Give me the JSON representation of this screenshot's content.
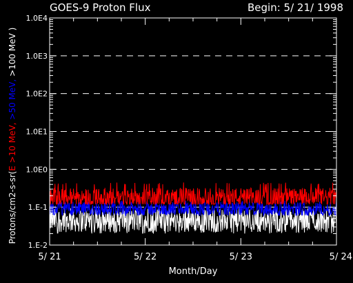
{
  "header": {
    "title": "GOES-9 Proton Flux",
    "begin": "Begin: 5/ 21/ 1998"
  },
  "chart_data": {
    "type": "line",
    "xlabel": "Month/Day",
    "x_tick_labels": [
      "5/ 21",
      "5/ 22",
      "5/ 23",
      "5/ 24"
    ],
    "x_range_days": [
      0,
      3
    ],
    "ylabel_parts": [
      {
        "text": "Protons/cm2-s-sr(",
        "color": "#ffffff"
      },
      {
        "text": "E >10 MeV, ",
        "color": "#ff0000"
      },
      {
        "text": ">50 MeV, ",
        "color": "#0000ff"
      },
      {
        "text": ">100 MeV )",
        "color": "#ffffff"
      }
    ],
    "y_scale": "log",
    "ylim": [
      0.01,
      10000
    ],
    "y_tick_labels": [
      "1.E-2",
      "1.E-1",
      "1.0E0",
      "1.0E1",
      "1.0E2",
      "1.0E3",
      "1.0E4"
    ],
    "y_tick_values": [
      0.01,
      0.1,
      1,
      10,
      100,
      1000,
      10000
    ],
    "grid": "dashed horizontal at each decade",
    "series": [
      {
        "energy": ">100 MeV",
        "color": "#ffffff",
        "typical": 0.045,
        "range": [
          0.02,
          0.1
        ]
      },
      {
        "energy": ">50 MeV",
        "color": "#0000ff",
        "typical": 0.09,
        "range": [
          0.06,
          0.15
        ]
      },
      {
        "energy": ">10 MeV",
        "color": "#ff0000",
        "typical": 0.18,
        "range": [
          0.12,
          0.45
        ]
      }
    ]
  },
  "colors": {
    "background": "#000000",
    "axes": "#ffffff",
    "grid": "#ffffff"
  }
}
